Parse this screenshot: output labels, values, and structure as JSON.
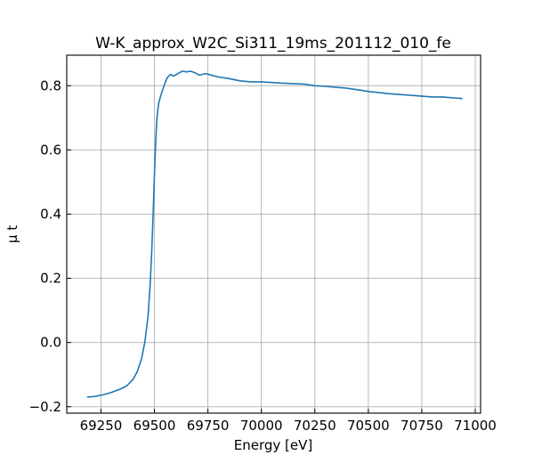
{
  "chart_data": {
    "type": "line",
    "title": "W-K_approx_W2C_Si311_19ms_201112_010_fe",
    "xlabel": "Energy [eV]",
    "ylabel": "μ t",
    "xlim": [
      69090,
      71025
    ],
    "ylim": [
      -0.22,
      0.895
    ],
    "xticks": [
      69250,
      69500,
      69750,
      70000,
      70250,
      70500,
      70750,
      71000
    ],
    "xtick_labels": [
      "69250",
      "69500",
      "69750",
      "70000",
      "70250",
      "70500",
      "70750",
      "71000"
    ],
    "yticks": [
      -0.2,
      0.0,
      0.2,
      0.4,
      0.6,
      0.8
    ],
    "ytick_labels": [
      "−0.2",
      "0.0",
      "0.2",
      "0.4",
      "0.6",
      "0.8"
    ],
    "grid": true,
    "series": [
      {
        "color": "#1f77b4",
        "x": [
          69185,
          69220,
          69260,
          69300,
          69340,
          69370,
          69400,
          69420,
          69440,
          69455,
          69470,
          69480,
          69488,
          69495,
          69500,
          69505,
          69510,
          69515,
          69520,
          69530,
          69545,
          69560,
          69575,
          69590,
          69610,
          69630,
          69650,
          69670,
          69690,
          69710,
          69740,
          69770,
          69800,
          69850,
          69900,
          69950,
          70000,
          70100,
          70200,
          70250,
          70300,
          70400,
          70500,
          70600,
          70700,
          70800,
          70850,
          70900,
          70940
        ],
        "y": [
          -0.17,
          -0.168,
          -0.163,
          -0.155,
          -0.145,
          -0.135,
          -0.115,
          -0.09,
          -0.05,
          0.0,
          0.08,
          0.18,
          0.29,
          0.42,
          0.52,
          0.61,
          0.68,
          0.72,
          0.745,
          0.77,
          0.8,
          0.825,
          0.835,
          0.83,
          0.838,
          0.845,
          0.843,
          0.845,
          0.84,
          0.833,
          0.838,
          0.832,
          0.827,
          0.822,
          0.815,
          0.812,
          0.812,
          0.808,
          0.805,
          0.8,
          0.798,
          0.792,
          0.782,
          0.775,
          0.77,
          0.765,
          0.765,
          0.762,
          0.76
        ]
      }
    ]
  }
}
